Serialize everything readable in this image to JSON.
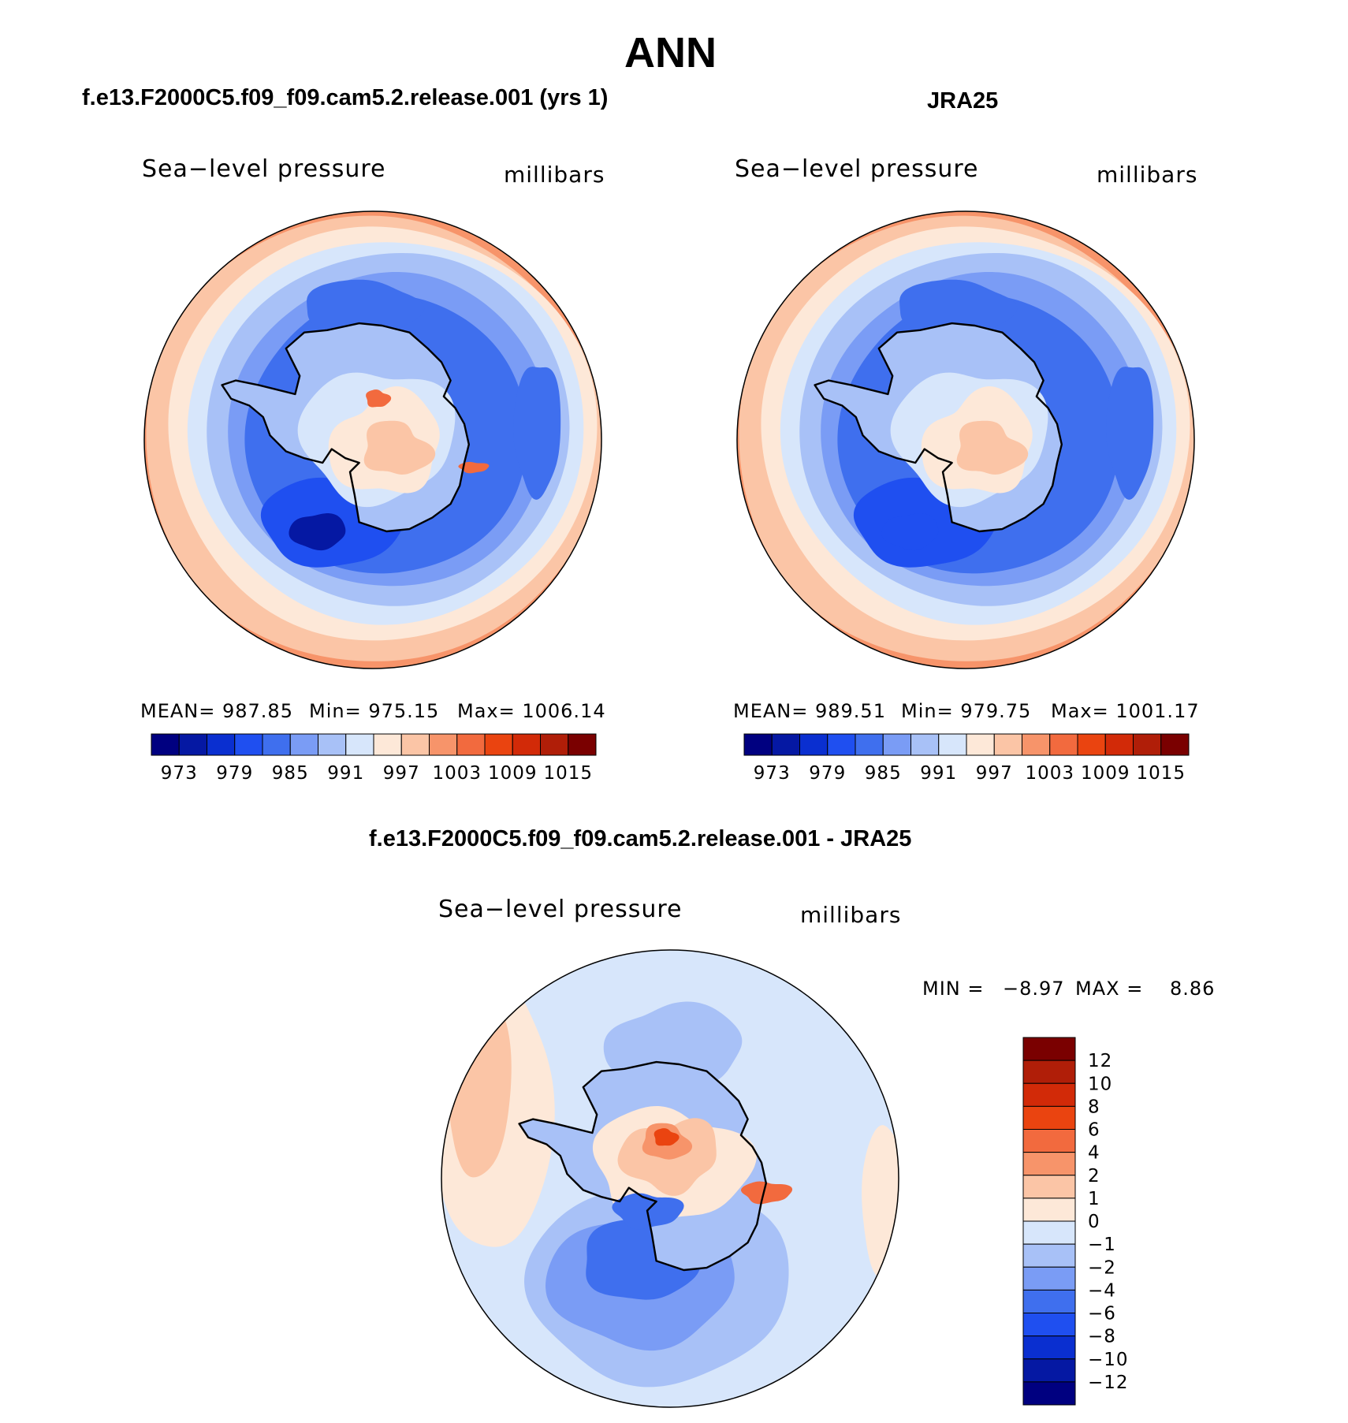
{
  "figure": {
    "season": "ANN",
    "colors": {
      "abs_scale": [
        "#000080",
        "#0518a3",
        "#0a2fd0",
        "#1f4ff0",
        "#3f6fee",
        "#7a9cf5",
        "#a8c1f7",
        "#d7e6fb",
        "#fde8d8",
        "#fbc5a6",
        "#f7946a",
        "#f26a3e",
        "#ea4410",
        "#d22a08",
        "#b01e08",
        "#7a0000"
      ],
      "diff_scale": [
        "#000080",
        "#0518a3",
        "#0a2fd0",
        "#1f4ff0",
        "#3f6fee",
        "#7a9cf5",
        "#a8c1f7",
        "#d7e6fb",
        "#fde8d8",
        "#fbc5a6",
        "#f7946a",
        "#f26a3e",
        "#ea4410",
        "#d22a08",
        "#b01e08",
        "#7a0000"
      ]
    }
  },
  "panels": [
    {
      "case_title": "f.e13.F2000C5.f09_f09.cam5.2.release.001 (yrs 1)",
      "variable": "Sea−level pressure",
      "units": "millibars",
      "mean_text": "MEAN= 987.85",
      "min_text": "Min= 975.15",
      "max_text": "Max= 1006.14",
      "colorbar_labels": [
        "973",
        "979",
        "985",
        "991",
        "997",
        "1003",
        "1009",
        "1015"
      ]
    },
    {
      "case_title": "JRA25",
      "variable": "Sea−level pressure",
      "units": "millibars",
      "mean_text": "MEAN= 989.51",
      "min_text": "Min= 979.75",
      "max_text": "Max= 1001.17",
      "colorbar_labels": [
        "973",
        "979",
        "985",
        "991",
        "997",
        "1003",
        "1009",
        "1015"
      ]
    }
  ],
  "diff_panel": {
    "title": "f.e13.F2000C5.f09_f09.cam5.2.release.001 - JRA25",
    "variable": "Sea−level pressure",
    "units": "millibars",
    "min_label": "MIN =",
    "min_value": "−8.97",
    "max_label": "MAX =",
    "max_value": "8.86",
    "colorbar_labels": [
      "12",
      "10",
      "8",
      "6",
      "4",
      "2",
      "1",
      "0",
      "−1",
      "−2",
      "−4",
      "−6",
      "−8",
      "−10",
      "−12"
    ]
  },
  "map_fields": {
    "model": {
      "outer_ring_level": 9,
      "ocean_ring_levels": [
        8,
        7,
        6,
        5
      ],
      "trough_level": 4,
      "low_center_level": 1,
      "interior_levels": [
        6,
        7,
        8,
        9,
        11
      ]
    },
    "obs": {
      "outer_ring_level": 9,
      "ocean_ring_levels": [
        8,
        7,
        6,
        5
      ],
      "trough_level": 4,
      "low_center_level": 3,
      "interior_levels": [
        6,
        7,
        8,
        9
      ]
    },
    "diff": {
      "background_level": 7,
      "interior_levels": [
        5,
        4,
        3,
        9,
        10,
        11,
        12
      ]
    }
  }
}
